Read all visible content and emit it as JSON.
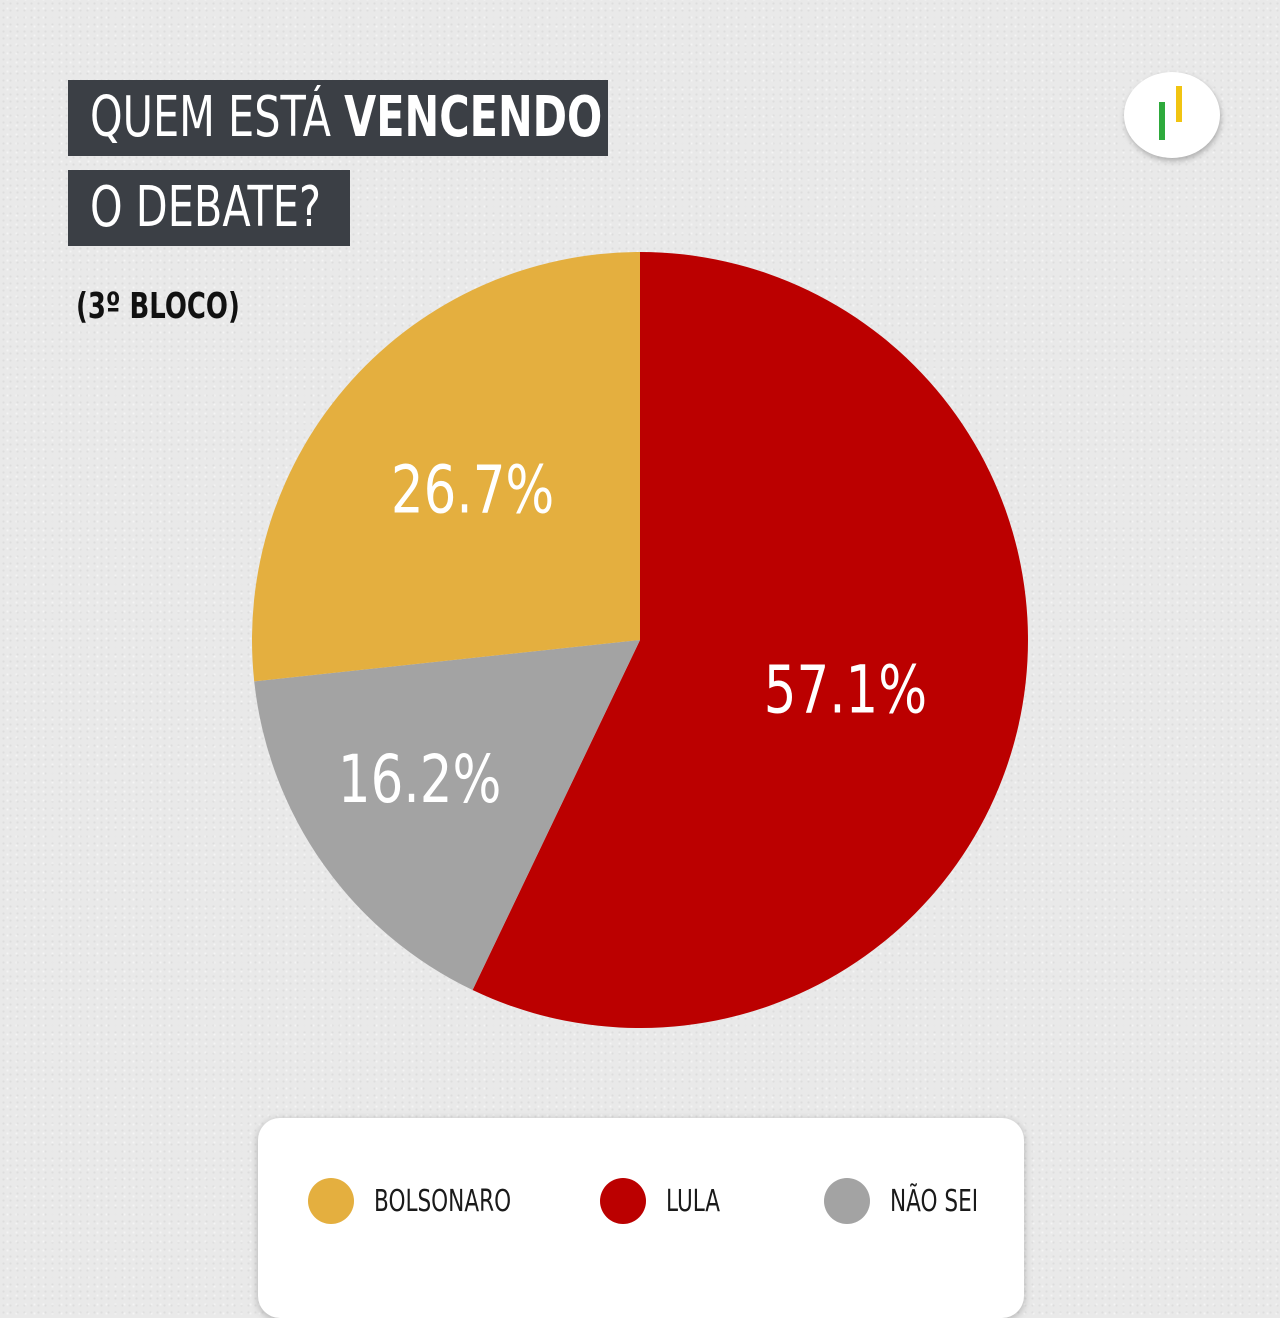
{
  "header": {
    "title_line1_light": "QUEM ESTÁ",
    "title_line1_bold": "VENCENDO",
    "title_line2": "O DEBATE?",
    "subtitle": "(3º BLOCO)"
  },
  "chart_data": {
    "type": "pie",
    "title": "QUEM ESTÁ VENCENDO O DEBATE?",
    "subtitle": "(3º BLOCO)",
    "categories": [
      "LULA",
      "NÃO SEI",
      "BOLSONARO"
    ],
    "values": [
      57.1,
      16.2,
      26.7
    ],
    "labels": [
      "57.1%",
      "16.2%",
      "26.7%"
    ],
    "colors": [
      "#bb0000",
      "#a3a3a3",
      "#e4af3f"
    ],
    "legend_order": [
      "BOLSONARO",
      "LULA",
      "NÃO SEI"
    ],
    "legend_colors": [
      "#e4af3f",
      "#bb0000",
      "#a3a3a3"
    ],
    "legend_placement": "bottom",
    "start": "top, clockwise"
  }
}
